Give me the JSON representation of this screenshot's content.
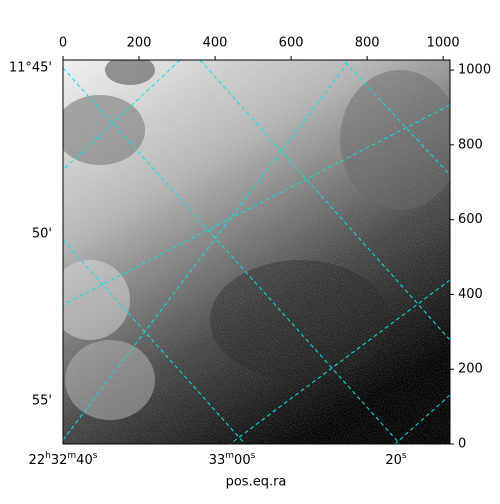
{
  "chart_data": {
    "type": "image",
    "xlabel": "pos.eq.ra",
    "xlim": [
      0,
      1018
    ],
    "xticks": [
      0,
      200,
      400,
      600,
      800,
      1000
    ],
    "ylim": [
      0,
      1027
    ],
    "yticks": [
      0,
      200,
      400,
      600,
      800,
      1000
    ],
    "ra_tick_labels": [
      "22h32m40s",
      "33m00s",
      "20s"
    ],
    "dec_tick_labels": [
      "11°45'",
      "50'",
      "55'"
    ],
    "grid_color": "#00e5e5"
  }
}
